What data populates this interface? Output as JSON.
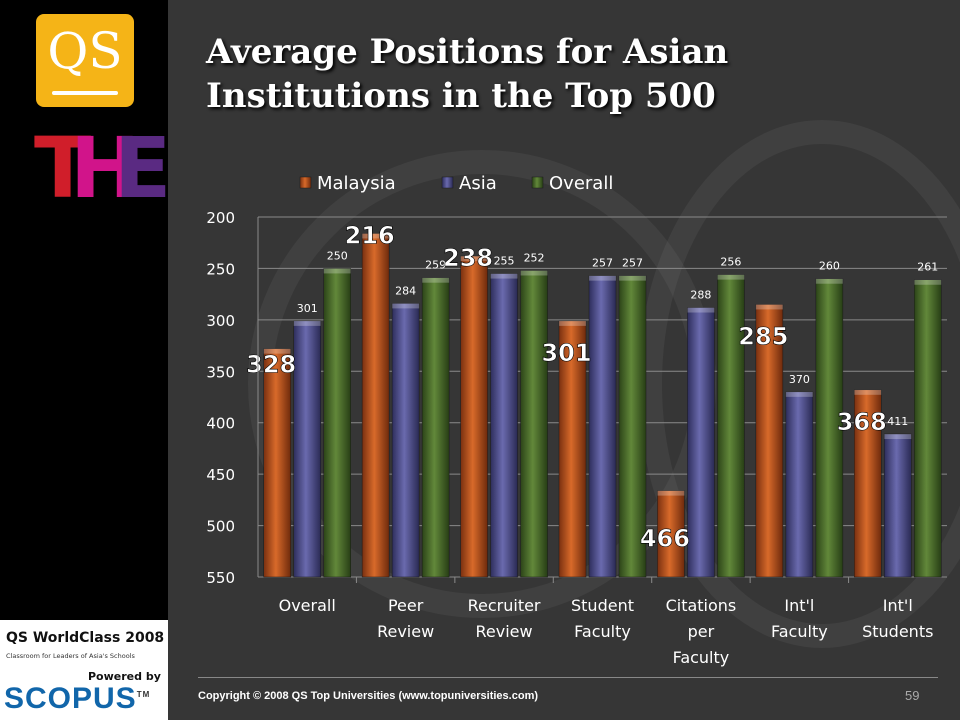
{
  "slide": {
    "title_line1": "Average Positions for Asian",
    "title_line2": "Institutions in the Top 500",
    "copyright": "Copyright © 2008  QS Top Universities (www.topuniversities.com)",
    "page_number": "59"
  },
  "logos": {
    "qs": "QS",
    "the_letters": [
      "T",
      "H",
      "E"
    ],
    "worldclass": "QS WorldClass 2008",
    "worldclass_sub": "Classroom for Leaders of Asia's Schools",
    "powered_by": "Powered by",
    "scopus": "SCOPUS",
    "scopus_tm": "TM"
  },
  "colors": {
    "malaysia": "#c0561e",
    "asia": "#4f4f8c",
    "overall": "#4a6b2c",
    "the_t": "#d01e2a",
    "the_h": "#d1148a",
    "the_e": "#5a2a82",
    "qs_gold": "#f5b417"
  },
  "chart_data": {
    "type": "bar",
    "inverted_axis": true,
    "ylim": [
      200,
      550
    ],
    "yticks": [
      "200",
      "250",
      "300",
      "350",
      "400",
      "450",
      "500",
      "550"
    ],
    "categories": [
      [
        "Overall"
      ],
      [
        "Peer",
        "Review"
      ],
      [
        "Recruiter",
        "Review"
      ],
      [
        "Student",
        "Faculty"
      ],
      [
        "Citations",
        "per",
        "Faculty"
      ],
      [
        "Int'l",
        "Faculty"
      ],
      [
        "Int'l",
        "Students"
      ]
    ],
    "legend_position": "top",
    "grid": true,
    "series": [
      {
        "name": "Malaysia",
        "values": [
          328,
          216,
          238,
          301,
          466,
          285,
          368
        ]
      },
      {
        "name": "Asia",
        "values": [
          301,
          284,
          255,
          257,
          288,
          370,
          411
        ]
      },
      {
        "name": "Overall",
        "values": [
          250,
          259,
          252,
          257,
          256,
          260,
          261
        ]
      }
    ]
  }
}
